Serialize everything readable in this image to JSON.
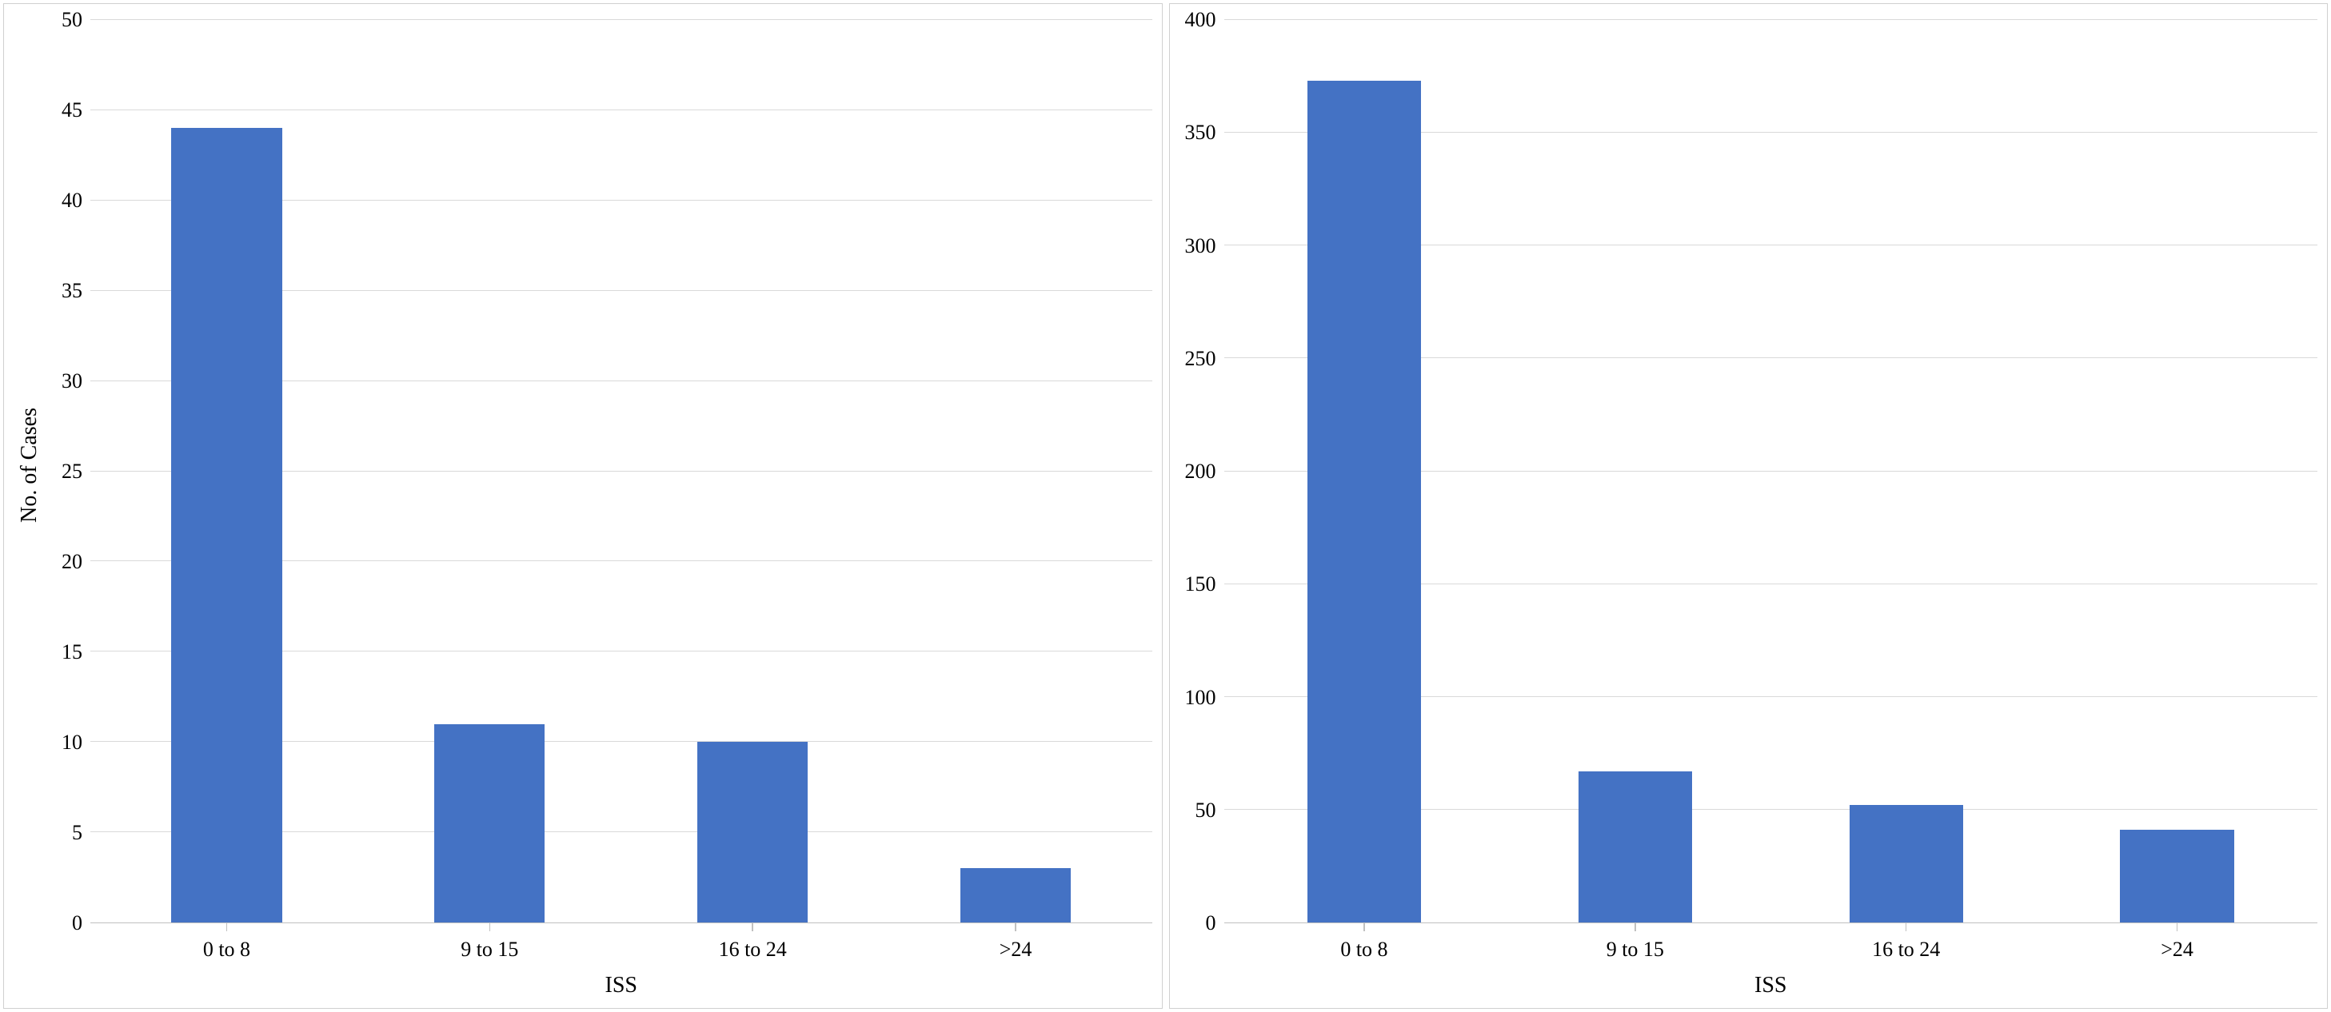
{
  "layout": {
    "panel_border_color": "#d0d0d0",
    "background_color": "#ffffff",
    "font_family": "Palatino Linotype"
  },
  "left_chart": {
    "type": "bar",
    "ylabel": "No. of Cases",
    "xlabel": "ISS",
    "categories": [
      "0 to 8",
      "9 to 15",
      "16 to 24",
      ">24"
    ],
    "values": [
      44,
      11,
      10,
      3
    ],
    "bar_color": "#4472c4",
    "ylim": [
      0,
      50
    ],
    "ytick_step": 5,
    "yticks": [
      0,
      5,
      10,
      15,
      20,
      25,
      30,
      35,
      40,
      45,
      50
    ],
    "grid_color": "#d9d9d9",
    "axis_color": "#c0c0c0",
    "label_fontsize": 28,
    "tick_fontsize": 26,
    "bar_width": 0.42
  },
  "right_chart": {
    "type": "bar",
    "ylabel": "",
    "xlabel": "ISS",
    "categories": [
      "0 to 8",
      "9 to 15",
      "16 to 24",
      ">24"
    ],
    "values": [
      373,
      67,
      52,
      41
    ],
    "bar_color": "#4472c4",
    "ylim": [
      0,
      400
    ],
    "ytick_step": 50,
    "yticks": [
      0,
      50,
      100,
      150,
      200,
      250,
      300,
      350,
      400
    ],
    "grid_color": "#d9d9d9",
    "axis_color": "#c0c0c0",
    "label_fontsize": 28,
    "tick_fontsize": 26,
    "bar_width": 0.42
  }
}
